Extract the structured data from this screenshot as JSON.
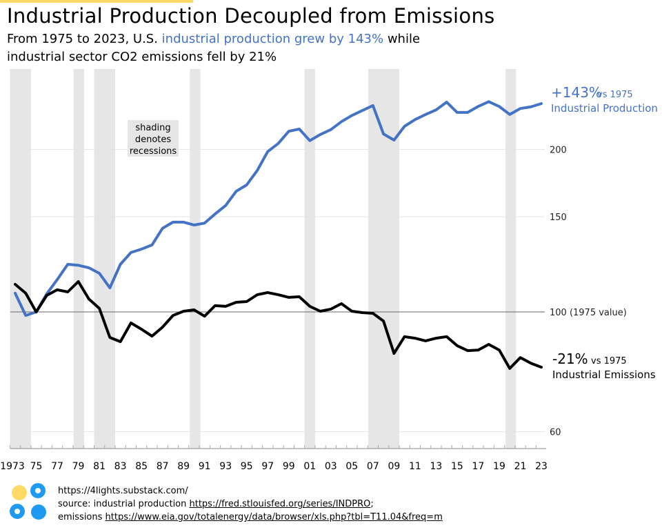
{
  "header": {
    "title": "Industrial Production Decoupled from Emissions",
    "subtitle_part1": "From 1975 to 2023, U.S. ",
    "subtitle_highlight": "industrial production grew by 143%",
    "subtitle_part2": " while",
    "subtitle_line2": "industrial sector CO2 emissions fell by 21%"
  },
  "colors": {
    "production": "#4472C4",
    "emissions": "#000000",
    "recession": "#E6E6E6",
    "accent": "#FFD966",
    "logo_blue": "#1E9BF0"
  },
  "chart_data": {
    "type": "line",
    "title": "Industrial Production Decoupled from Emissions",
    "yscale": "log",
    "ylim": [
      55,
      265
    ],
    "yticks": [
      60,
      100,
      150,
      200
    ],
    "ytick_labels": [
      "60",
      "100 (1975 value)",
      "150",
      "200"
    ],
    "xlim": [
      1972.5,
      2023.5
    ],
    "xtick_labels": [
      "1973",
      "75",
      "77",
      "79",
      "81",
      "83",
      "85",
      "87",
      "89",
      "91",
      "93",
      "95",
      "97",
      "99",
      "01",
      "03",
      "05",
      "07",
      "09",
      "11",
      "13",
      "15",
      "17",
      "19",
      "21",
      "23"
    ],
    "x": [
      1973,
      1974,
      1975,
      1976,
      1977,
      1978,
      1979,
      1980,
      1981,
      1982,
      1983,
      1984,
      1985,
      1986,
      1987,
      1988,
      1989,
      1990,
      1991,
      1992,
      1993,
      1994,
      1995,
      1996,
      1997,
      1998,
      1999,
      2000,
      2001,
      2002,
      2003,
      2004,
      2005,
      2006,
      2007,
      2008,
      2009,
      2010,
      2011,
      2012,
      2013,
      2014,
      2015,
      2016,
      2017,
      2018,
      2019,
      2020,
      2021,
      2022,
      2023
    ],
    "series": [
      {
        "name": "Industrial Production",
        "values": [
          108.3,
          98.5,
          100,
          108,
          114.8,
          122.5,
          122,
          120.7,
          117.9,
          110.8,
          122.5,
          128.8,
          130.7,
          133,
          142.8,
          146.6,
          146.6,
          144.8,
          146,
          151.8,
          157.4,
          167.2,
          171.8,
          182.7,
          198,
          205,
          216,
          218,
          207.5,
          213,
          217.5,
          225,
          231,
          236,
          241,
          213.5,
          208,
          220.6,
          227,
          232,
          236.6,
          244.5,
          234,
          234,
          240,
          245,
          240,
          232,
          238,
          239.6,
          243
        ]
      },
      {
        "name": "Industrial Emissions",
        "values": [
          112.5,
          108.3,
          100,
          107.3,
          109.9,
          108.9,
          113.8,
          105.7,
          101.5,
          89.7,
          88.1,
          95.4,
          92.9,
          90.2,
          93.7,
          98.5,
          100.3,
          100.9,
          98.2,
          102.7,
          102.4,
          104.2,
          104.5,
          107.6,
          108.6,
          107.6,
          106.4,
          106.7,
          102.4,
          100.3,
          101.2,
          103.6,
          100.3,
          99.7,
          99.4,
          96.2,
          83.8,
          90,
          89.4,
          88.4,
          89.4,
          90,
          86.6,
          84.8,
          85,
          87.1,
          85,
          78.6,
          82.3,
          80.4,
          79
        ]
      }
    ],
    "recessions": [
      [
        1972.5,
        1974.5
      ],
      [
        1978.55,
        1979.55
      ],
      [
        1980.5,
        1982.5
      ],
      [
        1989.6,
        1990.6
      ],
      [
        2000.5,
        2001.5
      ],
      [
        2006.55,
        2009.5
      ],
      [
        2019.6,
        2020.6
      ]
    ],
    "annotations": {
      "shading_note": [
        "shading",
        "denotes",
        "recessions"
      ],
      "production_change": "+143%",
      "production_vs": "vs 1975",
      "production_label": "Industrial Production",
      "emissions_change": "-21%",
      "emissions_vs": "vs 1975",
      "emissions_label": "Industrial Emissions"
    }
  },
  "footer": {
    "site": "https://4lights.substack.com/",
    "source_prefix": "source: industrial production ",
    "source_link1": "https://fred.stlouisfed.org/series/INDPRO",
    "source_sep": ";",
    "emissions_prefix": "emissions ",
    "source_link2": "https://www.eia.gov/totalenergy/data/browser/xls.php?tbl=T11.04&freq=m"
  }
}
